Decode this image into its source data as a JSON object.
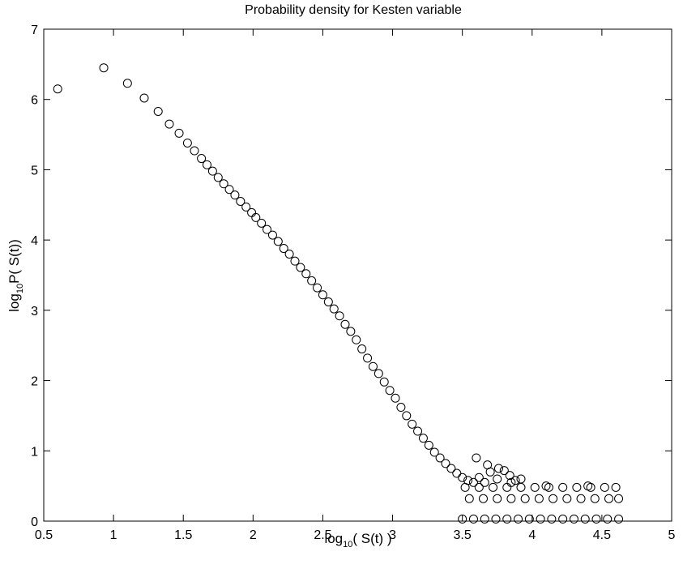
{
  "chart_data": {
    "type": "scatter",
    "title": "Probability density for Kesten variable",
    "xlabel": {
      "base": "log",
      "sub": "10",
      "rest": "( S(t) )"
    },
    "ylabel": {
      "base": "log",
      "sub": "10",
      "rest": "P( S(t))"
    },
    "xlim": [
      0.5,
      5
    ],
    "ylim": [
      0,
      7
    ],
    "xticks": [
      0.5,
      1,
      1.5,
      2,
      2.5,
      3,
      3.5,
      4,
      4.5,
      5
    ],
    "xtick_labels": [
      "0.5",
      "1",
      "1.5",
      "2",
      "2.5",
      "3",
      "3.5",
      "4",
      "4.5",
      "5"
    ],
    "yticks": [
      0,
      1,
      2,
      3,
      4,
      5,
      6,
      7
    ],
    "ytick_labels": [
      "0",
      "1",
      "2",
      "3",
      "4",
      "5",
      "6",
      "7"
    ],
    "grid": false,
    "marker": "open-circle",
    "series": [
      {
        "x": [
          0.6,
          0.93,
          1.1,
          1.22,
          1.32,
          1.4,
          1.47,
          1.53,
          1.58,
          1.63,
          1.67,
          1.71,
          1.75,
          1.79,
          1.83,
          1.87,
          1.91,
          1.95,
          1.99,
          2.02,
          2.06,
          2.1,
          2.14,
          2.18,
          2.22,
          2.26,
          2.3,
          2.34,
          2.38,
          2.42,
          2.46,
          2.5,
          2.54,
          2.58,
          2.62,
          2.66,
          2.7,
          2.74,
          2.78,
          2.82,
          2.86,
          2.9,
          2.94,
          2.98,
          3.02,
          3.06,
          3.1,
          3.14,
          3.18,
          3.22,
          3.26,
          3.3,
          3.34,
          3.38,
          3.42,
          3.46,
          3.5,
          3.54,
          3.58,
          3.62,
          3.66,
          3.7,
          3.75,
          3.8,
          3.85,
          3.92,
          4.1,
          4.4,
          3.52,
          3.62,
          3.72,
          3.82,
          3.92,
          4.02,
          4.12,
          4.22,
          4.32,
          4.42,
          4.52,
          4.6,
          3.55,
          3.65,
          3.75,
          3.85,
          3.95,
          4.05,
          4.15,
          4.25,
          4.35,
          4.45,
          4.55,
          4.62,
          3.5,
          3.58,
          3.66,
          3.74,
          3.82,
          3.9,
          3.98,
          4.06,
          4.14,
          4.22,
          4.3,
          4.38,
          4.46,
          4.54,
          4.62,
          3.6,
          3.68,
          3.76,
          3.84,
          3.88
        ],
        "y": [
          6.15,
          6.45,
          6.23,
          6.02,
          5.83,
          5.65,
          5.52,
          5.38,
          5.27,
          5.16,
          5.07,
          4.98,
          4.89,
          4.8,
          4.72,
          4.64,
          4.55,
          4.47,
          4.39,
          4.32,
          4.24,
          4.15,
          4.07,
          3.98,
          3.88,
          3.8,
          3.7,
          3.61,
          3.52,
          3.42,
          3.32,
          3.22,
          3.12,
          3.02,
          2.92,
          2.8,
          2.7,
          2.58,
          2.45,
          2.32,
          2.2,
          2.1,
          1.98,
          1.86,
          1.75,
          1.62,
          1.5,
          1.38,
          1.28,
          1.18,
          1.08,
          0.98,
          0.9,
          0.82,
          0.75,
          0.68,
          0.62,
          0.58,
          0.55,
          0.62,
          0.55,
          0.7,
          0.6,
          0.72,
          0.55,
          0.6,
          0.5,
          0.5,
          0.48,
          0.48,
          0.48,
          0.48,
          0.48,
          0.48,
          0.48,
          0.48,
          0.48,
          0.48,
          0.48,
          0.48,
          0.32,
          0.32,
          0.32,
          0.32,
          0.32,
          0.32,
          0.32,
          0.32,
          0.32,
          0.32,
          0.32,
          0.32,
          0.03,
          0.03,
          0.03,
          0.03,
          0.03,
          0.03,
          0.03,
          0.03,
          0.03,
          0.03,
          0.03,
          0.03,
          0.03,
          0.03,
          0.03,
          0.9,
          0.8,
          0.75,
          0.65,
          0.58
        ]
      }
    ]
  }
}
